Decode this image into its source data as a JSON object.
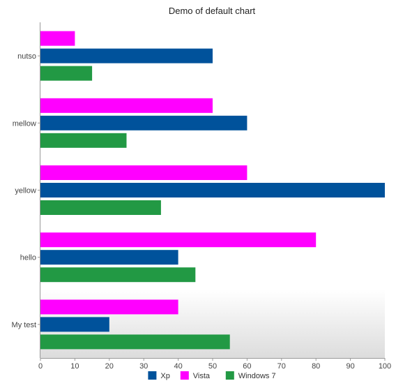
{
  "chart_data": {
    "type": "bar",
    "orientation": "horizontal",
    "title": "Demo of default chart",
    "xlabel": "",
    "ylabel": "",
    "categories": [
      "nutso",
      "mellow",
      "yellow",
      "hello",
      "My test"
    ],
    "series": [
      {
        "name": "Vista",
        "color": "#ff00ff",
        "values": [
          10,
          50,
          60,
          80,
          40
        ]
      },
      {
        "name": "Xp",
        "color": "#00529b",
        "values": [
          50,
          60,
          100,
          40,
          20
        ]
      },
      {
        "name": "Windows 7",
        "color": "#229944",
        "values": [
          15,
          25,
          35,
          45,
          55
        ]
      }
    ],
    "legend_order": [
      "Xp",
      "Vista",
      "Windows 7"
    ],
    "xlim": [
      0,
      100
    ],
    "xticks": [
      0,
      10,
      20,
      30,
      40,
      50,
      60,
      70,
      80,
      90,
      100
    ],
    "grid": false,
    "legend_position": "bottom"
  }
}
